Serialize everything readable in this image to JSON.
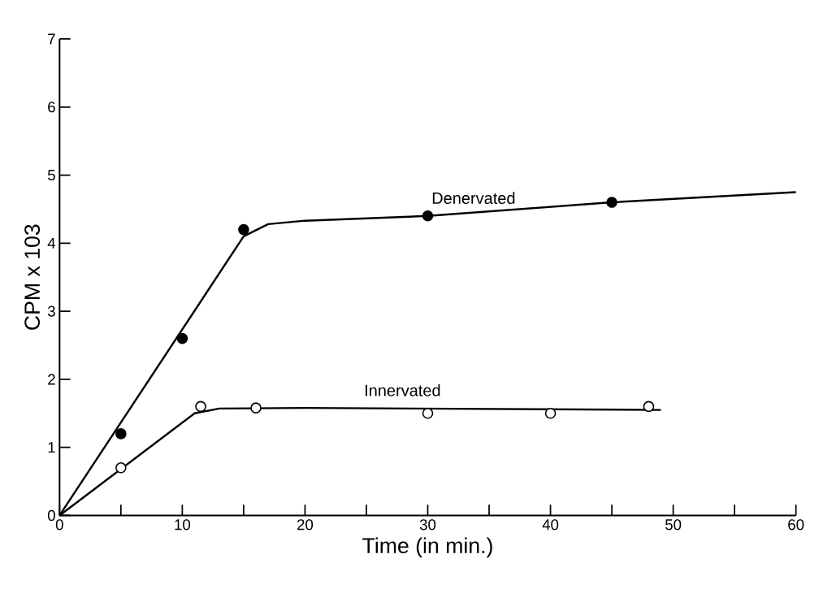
{
  "chart_data": {
    "type": "scatter",
    "xlabel": "Time (in min.)",
    "ylabel": "CPM x 103",
    "xlim": [
      0,
      60
    ],
    "ylim": [
      0,
      7
    ],
    "xticks": [
      0,
      {
        "value": 5,
        "label": null
      },
      10,
      {
        "value": 15,
        "label": null
      },
      20,
      {
        "value": 25,
        "label": null
      },
      30,
      {
        "value": 35,
        "label": null
      },
      40,
      {
        "value": 45,
        "label": null
      },
      50,
      {
        "value": 55,
        "label": null
      },
      60
    ],
    "yticks": [
      0,
      1,
      2,
      3,
      4,
      5,
      6,
      7
    ],
    "grid": false,
    "marker": "circle",
    "series": [
      {
        "type": "line",
        "name": "Denervated",
        "color": "#000000",
        "marker": "none",
        "x": [
          0,
          15,
          17,
          20,
          30,
          45,
          60
        ],
        "values": [
          0,
          4.1,
          4.28,
          4.33,
          4.4,
          4.6,
          4.75
        ]
      },
      {
        "type": "line",
        "name": "Innervated",
        "color": "#000000",
        "marker": "none",
        "x": [
          0,
          11,
          13,
          20,
          49
        ],
        "values": [
          0,
          1.5,
          1.57,
          1.58,
          1.55
        ]
      },
      {
        "color": "#000000",
        "x": [
          5,
          10,
          15,
          30,
          45
        ],
        "values": [
          1.2,
          2.6,
          4.2,
          4.4,
          4.6
        ]
      },
      {
        "color": "#ffffff",
        "x": [
          5,
          11.5,
          16,
          30,
          40,
          48
        ],
        "values": [
          0.7,
          1.6,
          1.58,
          1.5,
          1.5,
          1.6
        ]
      }
    ]
  }
}
